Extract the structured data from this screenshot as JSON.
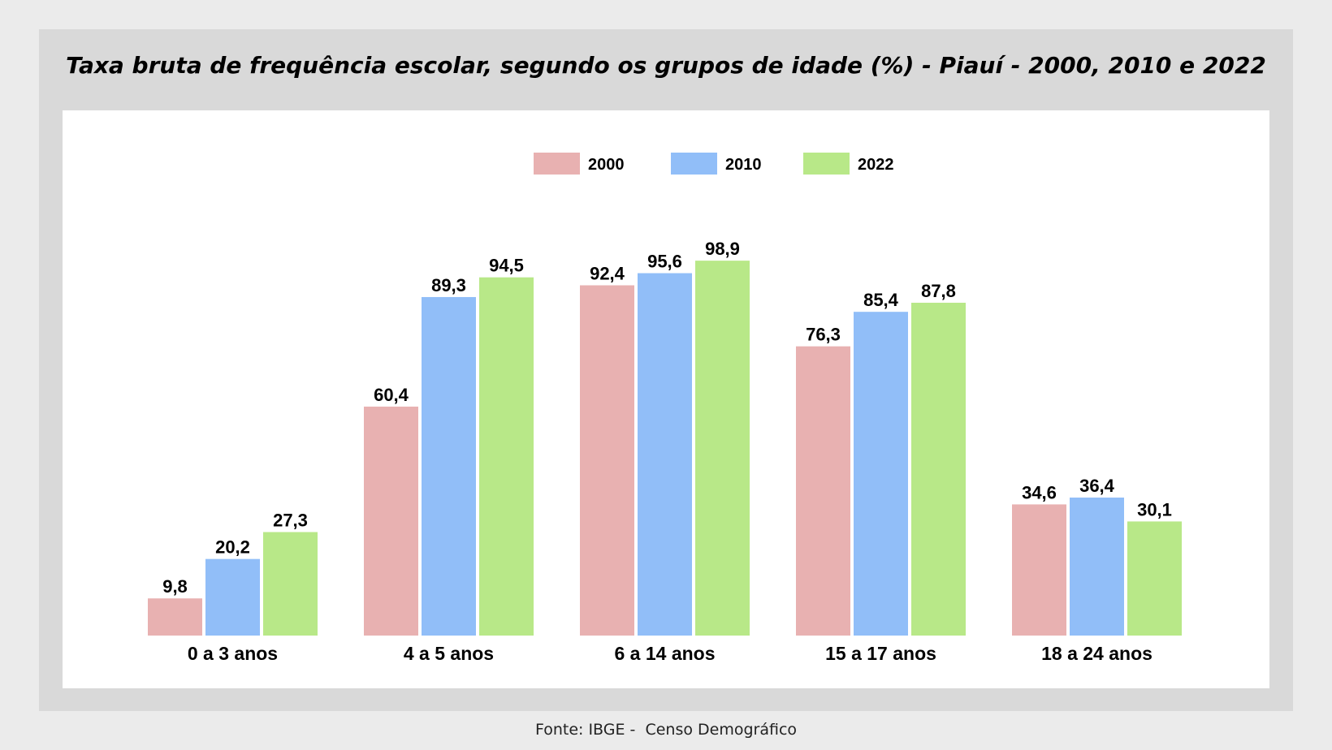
{
  "title": "Taxa bruta de frequência escolar, segundo os grupos de idade (%) - Piauí - 2000, 2010 e 2022",
  "source": "Fonte: IBGE -  Censo Demográfico",
  "chart_data": {
    "type": "bar",
    "title": "Taxa bruta de frequência escolar, segundo os grupos de idade (%) - Piauí - 2000, 2010 e 2022",
    "xlabel": "",
    "ylabel": "",
    "ylim": [
      0,
      100
    ],
    "grid": false,
    "legend_position": "top-center",
    "categories": [
      "0 a 3 anos",
      "4 a 5 anos",
      "6 a 14 anos",
      "15 a 17 anos",
      "18 a 24 anos"
    ],
    "series": [
      {
        "name": "2000",
        "color": "#e8b1b1",
        "values": [
          9.8,
          60.4,
          92.4,
          76.3,
          34.6
        ],
        "labels": [
          "9,8",
          "60,4",
          "92,4",
          "76,3",
          "34,6"
        ]
      },
      {
        "name": "2010",
        "color": "#91bef8",
        "values": [
          20.2,
          89.3,
          95.6,
          85.4,
          36.4
        ],
        "labels": [
          "20,2",
          "89,3",
          "95,6",
          "85,4",
          "36,4"
        ]
      },
      {
        "name": "2022",
        "color": "#b8e888",
        "values": [
          27.3,
          94.5,
          98.9,
          87.8,
          30.1
        ],
        "labels": [
          "27,3",
          "94,5",
          "98,9",
          "87,8",
          "30,1"
        ]
      }
    ]
  }
}
